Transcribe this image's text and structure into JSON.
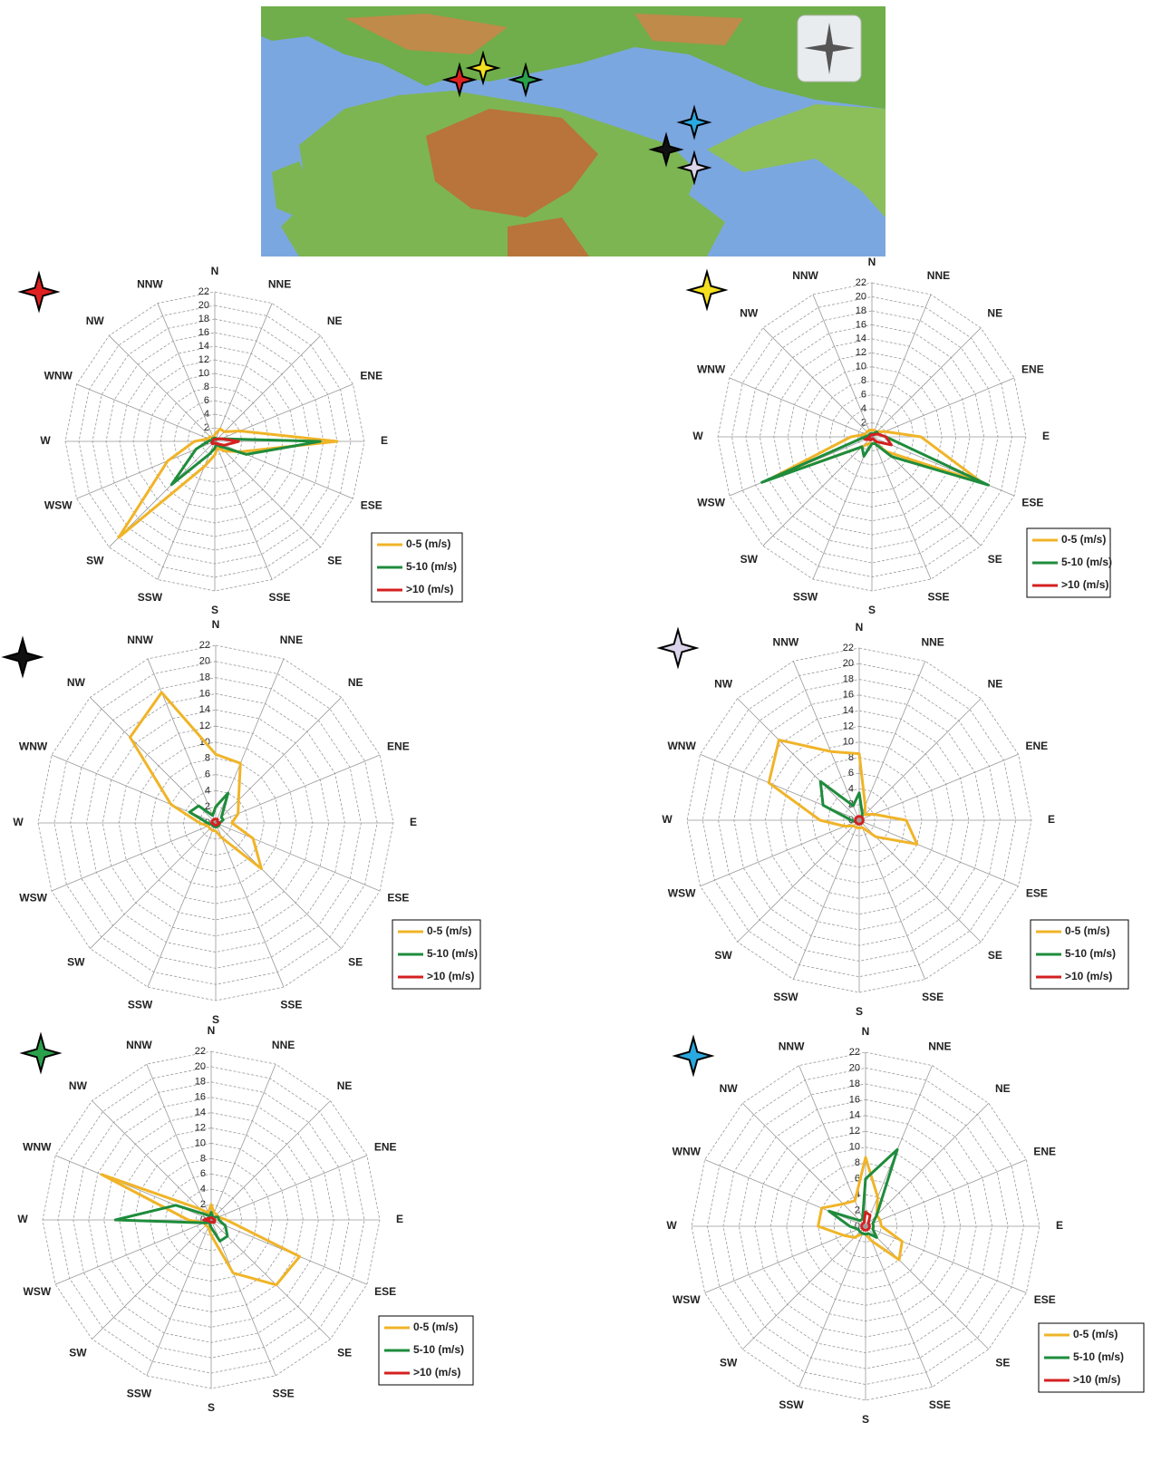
{
  "chart_data": [
    {
      "type": "radar",
      "categories": [
        "N",
        "NNE",
        "NE",
        "ENE",
        "E",
        "ESE",
        "SE",
        "SSE",
        "S",
        "SSW",
        "SW",
        "WSW",
        "W",
        "WNW",
        "NW",
        "NNW"
      ],
      "ylim": [
        0,
        22
      ],
      "yticks": [
        0,
        2,
        4,
        6,
        8,
        10,
        12,
        14,
        16,
        18,
        20,
        22
      ],
      "legend": "lower right",
      "series": [
        {
          "name": "0-5 (m/s)",
          "color": "#f0b428",
          "values": [
            1,
            2,
            2,
            4,
            18,
            4,
            2,
            1,
            2,
            4,
            20,
            7.5,
            3,
            1,
            1,
            0.5
          ]
        },
        {
          "name": "5-10 (m/s)",
          "color": "#1e8c3c",
          "values": [
            0.5,
            0.5,
            0.5,
            1,
            15.5,
            5,
            1,
            0.5,
            1,
            2,
            9,
            3,
            1,
            0.5,
            0.5,
            0.5
          ]
        },
        {
          "name": ">10 (m/s)",
          "color": "#d42020",
          "values": [
            0.3,
            0.3,
            0.5,
            1,
            3.5,
            1.5,
            0.5,
            0.3,
            0.3,
            0.3,
            0.5,
            0.5,
            0.3,
            0.3,
            0.3,
            0.3
          ]
        }
      ]
    },
    {
      "type": "radar",
      "categories": [
        "N",
        "NNE",
        "NE",
        "ENE",
        "E",
        "ESE",
        "SE",
        "SSE",
        "S",
        "SSW",
        "SW",
        "WSW",
        "W",
        "WNW",
        "NW",
        "NNW"
      ],
      "ylim": [
        0,
        22
      ],
      "yticks": [
        0,
        2,
        4,
        6,
        8,
        10,
        12,
        14,
        16,
        18,
        20,
        22
      ],
      "legend": "lower right",
      "series": [
        {
          "name": "0-5 (m/s)",
          "color": "#f0b428",
          "values": [
            1,
            1,
            1,
            2,
            7,
            17,
            3,
            1,
            1,
            1,
            2,
            16,
            3,
            1,
            1,
            1
          ]
        },
        {
          "name": "5-10 (m/s)",
          "color": "#1e8c3c",
          "values": [
            0.5,
            0.5,
            1,
            1,
            2,
            18,
            4,
            1,
            1,
            3,
            2,
            17,
            1,
            0.5,
            0.5,
            0.5
          ]
        },
        {
          "name": ">10 (m/s)",
          "color": "#d42020",
          "values": [
            0.3,
            0.3,
            0.5,
            1,
            2,
            3,
            1,
            0.3,
            0.3,
            0.5,
            0.5,
            1,
            0.3,
            0.3,
            0.3,
            0.3
          ]
        }
      ]
    },
    {
      "type": "radar",
      "categories": [
        "N",
        "NNE",
        "NE",
        "ENE",
        "E",
        "ESE",
        "SE",
        "SSE",
        "S",
        "SSW",
        "SW",
        "WSW",
        "W",
        "WNW",
        "NW",
        "NNW"
      ],
      "ylim": [
        0,
        22
      ],
      "yticks": [
        0,
        2,
        4,
        6,
        8,
        10,
        12,
        14,
        16,
        18,
        20,
        22
      ],
      "legend": "lower right",
      "series": [
        {
          "name": "0-5 (m/s)",
          "color": "#f0b428",
          "values": [
            8.5,
            8,
            4,
            3,
            2,
            5,
            8,
            2,
            1,
            1,
            1,
            1,
            2,
            6,
            15,
            17.5
          ]
        },
        {
          "name": "5-10 (m/s)",
          "color": "#1e8c3c",
          "values": [
            2,
            4,
            1,
            1,
            0.5,
            0.5,
            0.5,
            0.5,
            0.5,
            0.5,
            0.5,
            0.5,
            1,
            3.5,
            3,
            1
          ]
        },
        {
          "name": ">10 (m/s)",
          "color": "#d42020",
          "values": [
            0.5,
            0.5,
            0.3,
            0.3,
            0.5,
            0.3,
            0.3,
            0.3,
            0.3,
            0.3,
            0.3,
            0.3,
            0.5,
            0.5,
            0.5,
            0.5
          ]
        }
      ]
    },
    {
      "type": "radar",
      "categories": [
        "N",
        "NNE",
        "NE",
        "ENE",
        "E",
        "ESE",
        "SE",
        "SSE",
        "S",
        "SSW",
        "SW",
        "WSW",
        "W",
        "WNW",
        "NW",
        "NNW"
      ],
      "ylim": [
        0,
        22
      ],
      "yticks": [
        0,
        2,
        4,
        6,
        8,
        10,
        12,
        14,
        16,
        18,
        20,
        22
      ],
      "legend": "lower right",
      "series": [
        {
          "name": "0-5 (m/s)",
          "color": "#f0b428",
          "values": [
            8.5,
            2,
            1,
            2,
            6,
            8,
            3,
            1,
            1,
            1,
            1,
            2,
            5,
            12.5,
            14.5,
            9.5
          ]
        },
        {
          "name": "5-10 (m/s)",
          "color": "#1e8c3c",
          "values": [
            3.5,
            1,
            0.5,
            0.5,
            0.5,
            0.5,
            0.5,
            0.5,
            0.5,
            0.5,
            0.5,
            0.5,
            1,
            5,
            7,
            2
          ]
        },
        {
          "name": ">10 (m/s)",
          "color": "#d42020",
          "values": [
            0.5,
            0.5,
            0.5,
            0.5,
            0.5,
            0.5,
            0.5,
            0.5,
            0.5,
            0.5,
            0.5,
            0.5,
            0.5,
            0.5,
            0.5,
            0.5
          ]
        }
      ]
    },
    {
      "type": "radar",
      "categories": [
        "N",
        "NNE",
        "NE",
        "ENE",
        "E",
        "ESE",
        "SE",
        "SSE",
        "S",
        "SSW",
        "SW",
        "WSW",
        "W",
        "WNW",
        "NW",
        "NNW"
      ],
      "ylim": [
        0,
        22
      ],
      "yticks": [
        0,
        2,
        4,
        6,
        8,
        10,
        12,
        14,
        16,
        18,
        20,
        22
      ],
      "legend": "lower right",
      "series": [
        {
          "name": "0-5 (m/s)",
          "color": "#f0b428",
          "values": [
            2,
            1,
            1,
            1,
            2,
            12.5,
            12,
            7.5,
            2,
            1,
            1,
            1,
            3,
            15.5,
            2,
            1
          ]
        },
        {
          "name": "5-10 (m/s)",
          "color": "#1e8c3c",
          "values": [
            1,
            0.5,
            0.5,
            1,
            1,
            2,
            3,
            3,
            1,
            0.5,
            0.5,
            1,
            12.5,
            5,
            1,
            0.5
          ]
        },
        {
          "name": ">10 (m/s)",
          "color": "#d42020",
          "values": [
            0.3,
            0.3,
            0.3,
            0.3,
            0.5,
            0.5,
            0.5,
            0.3,
            0.3,
            0.3,
            0.3,
            0.3,
            1,
            0.5,
            0.3,
            0.3
          ]
        }
      ]
    },
    {
      "type": "radar",
      "categories": [
        "N",
        "NNE",
        "NE",
        "ENE",
        "E",
        "ESE",
        "SE",
        "SSE",
        "S",
        "SSW",
        "SW",
        "WSW",
        "W",
        "WNW",
        "NW",
        "NNW"
      ],
      "ylim": [
        0,
        22
      ],
      "yticks": [
        0,
        2,
        4,
        6,
        8,
        10,
        12,
        14,
        16,
        18,
        20,
        22
      ],
      "legend": "lower right",
      "series": [
        {
          "name": "0-5 (m/s)",
          "color": "#f0b428",
          "values": [
            8.7,
            4,
            2,
            2,
            2,
            5,
            6,
            2,
            1,
            1,
            2,
            3,
            6,
            6,
            4,
            3.5
          ]
        },
        {
          "name": "5-10 (m/s)",
          "color": "#1e8c3c",
          "values": [
            6,
            10.5,
            2,
            1,
            1,
            1,
            2,
            1,
            1,
            1,
            1,
            1,
            2,
            5,
            1,
            1
          ]
        },
        {
          "name": ">10 (m/s)",
          "color": "#d42020",
          "values": [
            1.8,
            1.5,
            0.5,
            0.5,
            0.5,
            0.5,
            0.5,
            0.5,
            0.5,
            0.5,
            0.5,
            0.5,
            0.5,
            0.5,
            0.5,
            0.5
          ]
        }
      ]
    }
  ]
}
